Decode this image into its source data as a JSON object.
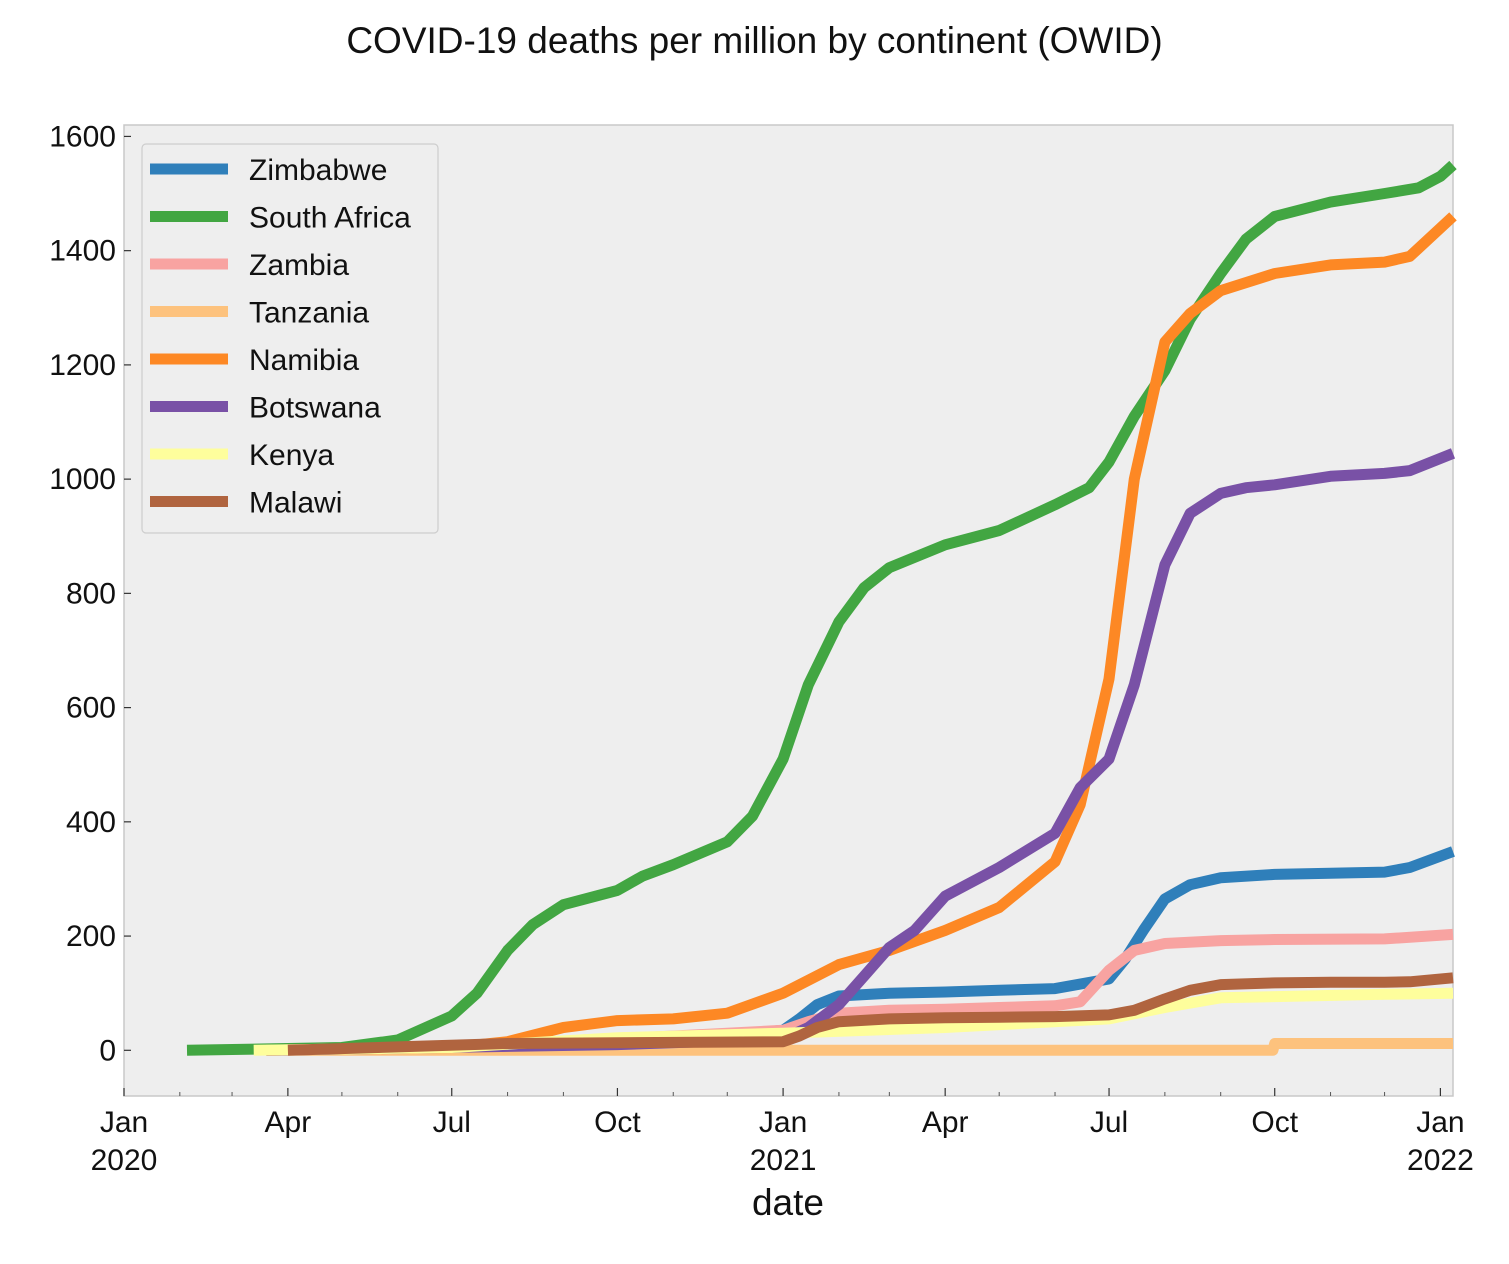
{
  "chart_data": {
    "type": "line",
    "title": "COVID-19 deaths per million by continent (OWID)",
    "xlabel": "date",
    "ylabel": "",
    "x_range": [
      "2020-01-01",
      "2022-01-08"
    ],
    "ylim": [
      -80,
      1620
    ],
    "y_ticks": [
      0,
      200,
      400,
      600,
      800,
      1000,
      1200,
      1400,
      1600
    ],
    "x_major_ticks": [
      {
        "date": "2020-01-01",
        "label": "Jan",
        "year": "2020"
      },
      {
        "date": "2020-04-01",
        "label": "Apr",
        "year": ""
      },
      {
        "date": "2020-07-01",
        "label": "Jul",
        "year": ""
      },
      {
        "date": "2020-10-01",
        "label": "Oct",
        "year": ""
      },
      {
        "date": "2021-01-01",
        "label": "Jan",
        "year": "2021"
      },
      {
        "date": "2021-04-01",
        "label": "Apr",
        "year": ""
      },
      {
        "date": "2021-07-01",
        "label": "Jul",
        "year": ""
      },
      {
        "date": "2021-10-01",
        "label": "Oct",
        "year": ""
      },
      {
        "date": "2022-01-01",
        "label": "Jan",
        "year": "2022"
      }
    ],
    "x_minor_ticks": [
      "2020-02-01",
      "2020-03-01",
      "2020-05-01",
      "2020-06-01",
      "2020-08-01",
      "2020-09-01",
      "2020-11-01",
      "2020-12-01",
      "2021-02-01",
      "2021-03-01",
      "2021-05-01",
      "2021-06-01",
      "2021-08-01",
      "2021-09-01",
      "2021-11-01",
      "2021-12-01"
    ],
    "grid": false,
    "legend_position": "upper-left",
    "background": "#eeeeee",
    "series": [
      {
        "name": "Zimbabwe",
        "color": "#2f7fba",
        "x": [
          "2020-03-20",
          "2020-07-01",
          "2020-10-01",
          "2021-01-01",
          "2021-01-10",
          "2021-01-20",
          "2021-02-01",
          "2021-03-01",
          "2021-04-01",
          "2021-05-01",
          "2021-06-01",
          "2021-07-01",
          "2021-07-10",
          "2021-07-20",
          "2021-08-01",
          "2021-08-15",
          "2021-09-01",
          "2021-10-01",
          "2021-11-01",
          "2021-12-01",
          "2021-12-15",
          "2022-01-08"
        ],
        "values": [
          0,
          3,
          12,
          35,
          55,
          80,
          95,
          100,
          102,
          105,
          108,
          125,
          160,
          210,
          265,
          290,
          302,
          308,
          310,
          312,
          320,
          348
        ]
      },
      {
        "name": "South Africa",
        "color": "#42a642",
        "x": [
          "2020-02-05",
          "2020-05-01",
          "2020-06-01",
          "2020-07-01",
          "2020-07-15",
          "2020-08-01",
          "2020-08-15",
          "2020-09-01",
          "2020-10-01",
          "2020-10-15",
          "2020-11-01",
          "2020-12-01",
          "2020-12-15",
          "2021-01-01",
          "2021-01-15",
          "2021-02-01",
          "2021-02-15",
          "2021-03-01",
          "2021-04-01",
          "2021-05-01",
          "2021-06-01",
          "2021-06-20",
          "2021-07-01",
          "2021-07-15",
          "2021-08-01",
          "2021-08-15",
          "2021-09-01",
          "2021-09-15",
          "2021-10-01",
          "2021-11-01",
          "2021-12-01",
          "2021-12-20",
          "2022-01-01",
          "2022-01-08"
        ],
        "values": [
          0,
          5,
          18,
          60,
          100,
          175,
          220,
          255,
          280,
          305,
          325,
          365,
          410,
          510,
          640,
          750,
          810,
          845,
          885,
          910,
          955,
          985,
          1030,
          1110,
          1190,
          1280,
          1360,
          1420,
          1460,
          1485,
          1500,
          1510,
          1530,
          1550
        ]
      },
      {
        "name": "Zambia",
        "color": "#f8a3a1",
        "x": [
          "2020-03-20",
          "2020-07-01",
          "2020-10-01",
          "2021-01-01",
          "2021-01-15",
          "2021-02-01",
          "2021-03-01",
          "2021-04-01",
          "2021-05-01",
          "2021-06-01",
          "2021-06-15",
          "2021-07-01",
          "2021-07-15",
          "2021-08-01",
          "2021-09-01",
          "2021-10-01",
          "2021-12-01",
          "2022-01-08"
        ],
        "values": [
          0,
          5,
          20,
          35,
          50,
          65,
          70,
          72,
          75,
          78,
          85,
          140,
          175,
          187,
          192,
          194,
          195,
          203
        ]
      },
      {
        "name": "Tanzania",
        "color": "#fdc27d",
        "x": [
          "2020-03-20",
          "2021-09-30",
          "2021-10-01",
          "2022-01-08"
        ],
        "values": [
          0,
          0,
          12,
          12
        ]
      },
      {
        "name": "Namibia",
        "color": "#fd8824",
        "x": [
          "2020-03-20",
          "2020-07-01",
          "2020-08-01",
          "2020-09-01",
          "2020-10-01",
          "2020-11-01",
          "2020-12-01",
          "2021-01-01",
          "2021-02-01",
          "2021-03-01",
          "2021-04-01",
          "2021-05-01",
          "2021-06-01",
          "2021-06-15",
          "2021-07-01",
          "2021-07-15",
          "2021-08-01",
          "2021-08-15",
          "2021-09-01",
          "2021-10-01",
          "2021-11-01",
          "2021-12-01",
          "2021-12-15",
          "2022-01-08"
        ],
        "values": [
          0,
          5,
          15,
          40,
          52,
          55,
          65,
          100,
          150,
          175,
          210,
          250,
          330,
          430,
          650,
          1000,
          1240,
          1290,
          1330,
          1360,
          1375,
          1380,
          1390,
          1460
        ]
      },
      {
        "name": "Botswana",
        "color": "#7951a6",
        "x": [
          "2020-03-20",
          "2020-10-01",
          "2021-01-01",
          "2021-01-15",
          "2021-02-01",
          "2021-02-15",
          "2021-03-01",
          "2021-03-15",
          "2021-04-01",
          "2021-05-01",
          "2021-06-01",
          "2021-06-15",
          "2021-07-01",
          "2021-07-15",
          "2021-08-01",
          "2021-08-15",
          "2021-09-01",
          "2021-09-15",
          "2021-10-01",
          "2021-11-01",
          "2021-12-01",
          "2021-12-15",
          "2022-01-08"
        ],
        "values": [
          0,
          10,
          20,
          40,
          80,
          130,
          180,
          210,
          270,
          320,
          380,
          460,
          510,
          640,
          850,
          940,
          975,
          985,
          990,
          1005,
          1010,
          1015,
          1045
        ]
      },
      {
        "name": "Kenya",
        "color": "#fefe9c",
        "x": [
          "2020-03-13",
          "2020-07-01",
          "2020-10-01",
          "2021-01-01",
          "2021-04-01",
          "2021-07-01",
          "2021-08-01",
          "2021-09-01",
          "2021-12-01",
          "2022-01-08"
        ],
        "values": [
          0,
          5,
          22,
          30,
          40,
          55,
          75,
          92,
          98,
          100
        ]
      },
      {
        "name": "Malawi",
        "color": "#b0643f",
        "x": [
          "2020-04-01",
          "2020-08-01",
          "2021-01-01",
          "2021-01-10",
          "2021-01-20",
          "2021-02-01",
          "2021-03-01",
          "2021-04-01",
          "2021-05-01",
          "2021-06-01",
          "2021-07-01",
          "2021-07-15",
          "2021-08-01",
          "2021-08-15",
          "2021-09-01",
          "2021-10-01",
          "2021-11-01",
          "2021-12-01",
          "2021-12-15",
          "2022-01-08"
        ],
        "values": [
          0,
          12,
          15,
          25,
          40,
          50,
          55,
          57,
          58,
          59,
          62,
          70,
          90,
          105,
          115,
          118,
          119,
          119,
          120,
          127
        ]
      }
    ]
  }
}
